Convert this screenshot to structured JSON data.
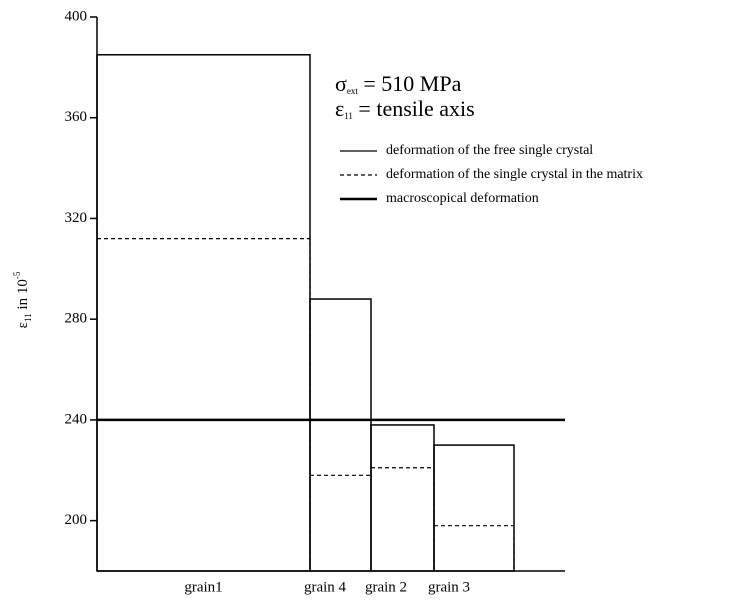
{
  "chart_data": {
    "type": "step-bar",
    "categories": [
      "grain1",
      "grain 4",
      "grain 2",
      "grain 3"
    ],
    "series": [
      {
        "name": "deformation of the free single crystal",
        "color": "#000000",
        "style": "solid",
        "values": [
          385,
          288,
          238,
          230
        ]
      },
      {
        "name": "deformation of the single crystal in the matrix",
        "color": "#000000",
        "style": "dashed",
        "values": [
          312,
          218,
          221,
          198
        ]
      },
      {
        "name": "macroscopical deformation",
        "color": "#000000",
        "style": "thick",
        "values": [
          240,
          240,
          240,
          240
        ]
      }
    ],
    "ylabel": {
      "symbol": "ε",
      "sub": "11",
      "text": " in 10",
      "sup": "-5"
    },
    "annotations": [
      {
        "symbol": "σ",
        "sub": "ext",
        "text": " = 510 MPa"
      },
      {
        "symbol": "ε",
        "sub": "11",
        "text": " = tensile axis"
      }
    ],
    "ylim": [
      180,
      400
    ],
    "yticks": [
      200,
      240,
      280,
      320,
      360,
      400
    ]
  }
}
